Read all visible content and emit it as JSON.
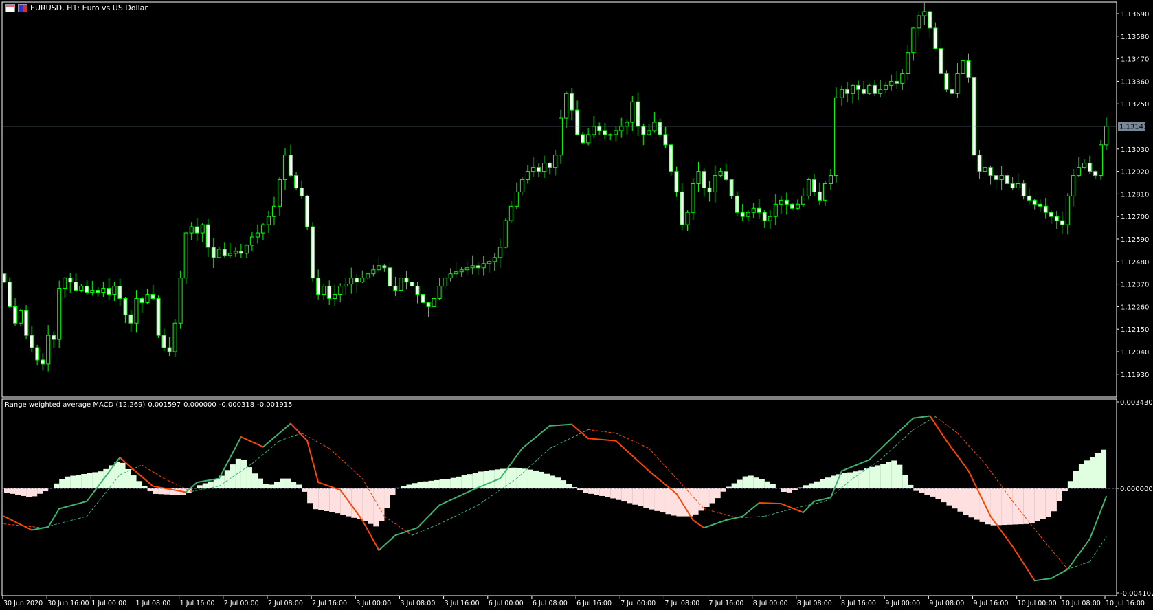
{
  "window": {
    "title": "EURUSD, H1:  Euro vs US Dollar"
  },
  "colors": {
    "bg": "#000000",
    "axis": "#ffffff",
    "candle": "#00ff00",
    "bear_body": "#ffffff",
    "bull_body": "#000000",
    "price_line": "#778899",
    "macd_up": "#3cb371",
    "macd_down": "#ff4500",
    "hist_pos": "#e0ffe0",
    "hist_neg": "#ffe0e0"
  },
  "price_axis": {
    "labels": [
      "1.13690",
      "1.13580",
      "1.13470",
      "1.13360",
      "1.13250",
      "1.13141",
      "1.13030",
      "1.12920",
      "1.12810",
      "1.12700",
      "1.12590",
      "1.12480",
      "1.12370",
      "1.12260",
      "1.12150",
      "1.12040",
      "1.11930"
    ],
    "current_price": "1.13141"
  },
  "time_axis": {
    "labels": [
      "30 Jun 2020",
      "30 Jun 16:00",
      "1 Jul 00:00",
      "1 Jul 08:00",
      "1 Jul 16:00",
      "2 Jul 00:00",
      "2 Jul 08:00",
      "2 Jul 16:00",
      "3 Jul 00:00",
      "3 Jul 08:00",
      "3 Jul 16:00",
      "6 Jul 00:00",
      "6 Jul 08:00",
      "6 Jul 16:00",
      "7 Jul 00:00",
      "7 Jul 08:00",
      "7 Jul 16:00",
      "8 Jul 00:00",
      "8 Jul 08:00",
      "8 Jul 16:00",
      "9 Jul 00:00",
      "9 Jul 08:00",
      "9 Jul 16:00",
      "10 Jul 00:00",
      "10 Jul 08:00",
      "10 Jul 16:00"
    ]
  },
  "indicator": {
    "name": "Range weighted average MACD (12,269)",
    "values": [
      "0.001597",
      "0.000000",
      "-0.000318",
      "-0.001915"
    ],
    "axis_labels": [
      "0.003430",
      "0.000000",
      "-0.004107"
    ],
    "range": [
      -0.004107,
      0.00343
    ]
  },
  "chart_data": {
    "type": "candlestick",
    "symbol": "EURUSD",
    "timeframe": "H1",
    "ylim": [
      1.1193,
      1.1369
    ],
    "closes": [
      1.1238,
      1.1226,
      1.1218,
      1.1224,
      1.1212,
      1.1206,
      1.12,
      1.1198,
      1.1212,
      1.121,
      1.1235,
      1.124,
      1.1238,
      1.1234,
      1.1236,
      1.1233,
      1.1234,
      1.1233,
      1.1235,
      1.1232,
      1.1236,
      1.123,
      1.1222,
      1.1218,
      1.123,
      1.1228,
      1.1232,
      1.123,
      1.1212,
      1.1206,
      1.1204,
      1.1218,
      1.124,
      1.1262,
      1.1265,
      1.1262,
      1.1266,
      1.1255,
      1.125,
      1.1254,
      1.1251,
      1.1252,
      1.1253,
      1.1252,
      1.1256,
      1.126,
      1.1262,
      1.1266,
      1.127,
      1.1275,
      1.1288,
      1.13,
      1.129,
      1.1284,
      1.128,
      1.1265,
      1.124,
      1.1232,
      1.1236,
      1.123,
      1.1232,
      1.1236,
      1.1237,
      1.124,
      1.1238,
      1.124,
      1.1242,
      1.1244,
      1.1246,
      1.1245,
      1.1236,
      1.1234,
      1.124,
      1.1238,
      1.1236,
      1.1232,
      1.1228,
      1.1226,
      1.123,
      1.1236,
      1.124,
      1.1242,
      1.1243,
      1.1244,
      1.1245,
      1.1246,
      1.1245,
      1.1247,
      1.1248,
      1.125,
      1.1255,
      1.1268,
      1.1275,
      1.1282,
      1.1288,
      1.1292,
      1.1294,
      1.1292,
      1.1296,
      1.1294,
      1.13,
      1.1318,
      1.133,
      1.1322,
      1.131,
      1.1306,
      1.131,
      1.1314,
      1.1312,
      1.131,
      1.131,
      1.1312,
      1.1314,
      1.1316,
      1.1326,
      1.1314,
      1.131,
      1.1312,
      1.1316,
      1.131,
      1.1305,
      1.1292,
      1.1282,
      1.1266,
      1.1272,
      1.1286,
      1.1292,
      1.1284,
      1.1282,
      1.129,
      1.1292,
      1.1288,
      1.128,
      1.1272,
      1.127,
      1.1272,
      1.1274,
      1.1272,
      1.1268,
      1.127,
      1.1276,
      1.1278,
      1.1276,
      1.1274,
      1.1276,
      1.128,
      1.1288,
      1.1282,
      1.1278,
      1.1286,
      1.129,
      1.1328,
      1.1332,
      1.133,
      1.1334,
      1.1332,
      1.133,
      1.1334,
      1.133,
      1.1332,
      1.1334,
      1.1336,
      1.1335,
      1.134,
      1.135,
      1.1362,
      1.1368,
      1.137,
      1.1362,
      1.1352,
      1.134,
      1.1332,
      1.133,
      1.134,
      1.1346,
      1.1338,
      1.13,
      1.1292,
      1.1294,
      1.129,
      1.1288,
      1.129,
      1.1286,
      1.1284,
      1.1286,
      1.128,
      1.1278,
      1.1276,
      1.1275,
      1.1272,
      1.127,
      1.1268,
      1.1266,
      1.128,
      1.129,
      1.1294,
      1.1296,
      1.1292,
      1.129,
      1.1305,
      1.13141
    ],
    "macd": [
      [
        0,
        -0.0011
      ],
      [
        5,
        -0.00164
      ],
      [
        8,
        -0.00152
      ],
      [
        10,
        -0.0008
      ],
      [
        15,
        -0.00051
      ],
      [
        21,
        0.00122
      ],
      [
        23,
        0.00083
      ],
      [
        27,
        9e-05
      ],
      [
        33,
        -0.00015
      ],
      [
        35,
        0.00024
      ],
      [
        39,
        0.00039
      ],
      [
        43,
        0.00203
      ],
      [
        47,
        0.00164
      ],
      [
        52,
        0.00256
      ],
      [
        55,
        0.00188
      ],
      [
        57,
        0.00024
      ],
      [
        61,
        -6e-05
      ],
      [
        65,
        -0.00125
      ],
      [
        68,
        -0.00244
      ],
      [
        71,
        -0.00185
      ],
      [
        75,
        -0.00155
      ],
      [
        79,
        -0.00066
      ],
      [
        85,
        -6e-05
      ],
      [
        90,
        0.00039
      ],
      [
        94,
        0.00158
      ],
      [
        99,
        0.00247
      ],
      [
        103,
        0.00253
      ],
      [
        106,
        0.00197
      ],
      [
        111,
        0.00188
      ],
      [
        117,
        0.00069
      ],
      [
        122,
        -0.00021
      ],
      [
        125,
        -0.00125
      ],
      [
        127,
        -0.00155
      ],
      [
        131,
        -0.00125
      ],
      [
        134,
        -0.0011
      ],
      [
        137,
        -0.00057
      ],
      [
        141,
        -0.0006
      ],
      [
        145,
        -0.00095
      ],
      [
        147,
        -0.00051
      ],
      [
        150,
        -0.00036
      ],
      [
        152,
        0.00069
      ],
      [
        157,
        0.00113
      ],
      [
        162,
        0.00218
      ],
      [
        165,
        0.00277
      ],
      [
        168,
        0.00286
      ],
      [
        171,
        0.00188
      ],
      [
        175,
        0.00069
      ],
      [
        179,
        -0.0011
      ],
      [
        183,
        -0.00229
      ],
      [
        187,
        -0.00364
      ],
      [
        190,
        -0.00355
      ],
      [
        193,
        -0.00319
      ],
      [
        197,
        -0.002
      ],
      [
        200,
        -0.000318
      ]
    ],
    "signal": [
      [
        0,
        -0.0014
      ],
      [
        7,
        -0.00155
      ],
      [
        15,
        -0.0011
      ],
      [
        21,
        0.00054
      ],
      [
        25,
        0.00092
      ],
      [
        29,
        0.00039
      ],
      [
        34,
        -0.00012
      ],
      [
        39,
        9e-05
      ],
      [
        45,
        0.00098
      ],
      [
        50,
        0.00188
      ],
      [
        54,
        0.00218
      ],
      [
        59,
        0.00158
      ],
      [
        65,
        0.00039
      ],
      [
        69,
        -0.0011
      ],
      [
        74,
        -0.00185
      ],
      [
        79,
        -0.0014
      ],
      [
        86,
        -0.00066
      ],
      [
        93,
        0.00039
      ],
      [
        99,
        0.00158
      ],
      [
        106,
        0.00232
      ],
      [
        111,
        0.00218
      ],
      [
        117,
        0.00158
      ],
      [
        122,
        0.00039
      ],
      [
        127,
        -0.0008
      ],
      [
        133,
        -0.00116
      ],
      [
        138,
        -0.0011
      ],
      [
        143,
        -0.0008
      ],
      [
        149,
        -0.00051
      ],
      [
        154,
        0.00039
      ],
      [
        159,
        0.00113
      ],
      [
        165,
        0.00232
      ],
      [
        169,
        0.00283
      ],
      [
        173,
        0.00218
      ],
      [
        178,
        0.00098
      ],
      [
        183,
        -0.00051
      ],
      [
        189,
        -0.00215
      ],
      [
        193,
        -0.00319
      ],
      [
        197,
        -0.00289
      ],
      [
        200,
        -0.001915
      ]
    ],
    "histogram": [
      [
        0,
        -0.00015
      ],
      [
        5,
        -0.00036
      ],
      [
        8,
        -6e-05
      ],
      [
        11,
        0.00045
      ],
      [
        18,
        0.00069
      ],
      [
        21,
        0.00113
      ],
      [
        24,
        0.00039
      ],
      [
        27,
        -0.00021
      ],
      [
        33,
        -0.00027
      ],
      [
        35,
        9e-05
      ],
      [
        39,
        0.00039
      ],
      [
        43,
        0.00128
      ],
      [
        45,
        0.00069
      ],
      [
        48,
        9e-05
      ],
      [
        51,
        0.00045
      ],
      [
        54,
        9e-05
      ],
      [
        56,
        -0.0008
      ],
      [
        60,
        -0.00095
      ],
      [
        65,
        -0.00125
      ],
      [
        68,
        -0.00155
      ],
      [
        71,
        0
      ],
      [
        75,
        0.00024
      ],
      [
        81,
        0.00039
      ],
      [
        87,
        0.00069
      ],
      [
        93,
        0.00083
      ],
      [
        97,
        0.00069
      ],
      [
        101,
        0.00039
      ],
      [
        105,
        -0.00015
      ],
      [
        110,
        -0.00036
      ],
      [
        117,
        -0.0008
      ],
      [
        122,
        -0.0011
      ],
      [
        125,
        -0.0011
      ],
      [
        129,
        -0.00051
      ],
      [
        131,
        0
      ],
      [
        135,
        0.00054
      ],
      [
        139,
        0.00024
      ],
      [
        142,
        -0.00021
      ],
      [
        145,
        9e-05
      ],
      [
        147,
        0.00024
      ],
      [
        151,
        0.00054
      ],
      [
        155,
        0.00069
      ],
      [
        162,
        0.00113
      ],
      [
        165,
        -6e-05
      ],
      [
        169,
        -0.00036
      ],
      [
        175,
        -0.0011
      ],
      [
        179,
        -0.00146
      ],
      [
        186,
        -0.0014
      ],
      [
        190,
        -0.0011
      ],
      [
        193,
        9e-05
      ],
      [
        195,
        0.00089
      ],
      [
        200,
        0.001597
      ]
    ]
  }
}
